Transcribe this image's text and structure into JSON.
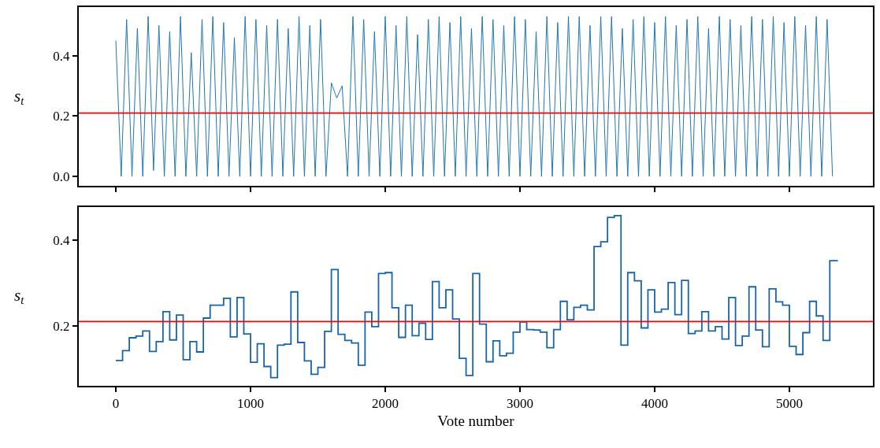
{
  "chart_data": [
    {
      "type": "line",
      "ylabel": "s$_{t}$",
      "xlim": [
        -275,
        5620
      ],
      "ylim": [
        -0.031,
        0.561
      ],
      "xticks": [
        0,
        1000,
        2000,
        3000,
        4000,
        5000
      ],
      "yticks": [
        {
          "value": 0,
          "label": "0.0"
        },
        {
          "value": 0.2,
          "label": "0.2"
        },
        {
          "value": 0.4,
          "label": "0.4"
        }
      ],
      "tick_labels": "y",
      "ref_lines": [
        {
          "axis": "y",
          "value": 0.21,
          "color": "#ff0000"
        }
      ],
      "series": [
        {
          "color": "#1f77b4",
          "x": [
            0,
            40,
            80,
            120,
            160,
            200,
            240,
            280,
            320,
            360,
            400,
            440,
            480,
            520,
            560,
            600,
            640,
            680,
            720,
            760,
            800,
            840,
            880,
            920,
            960,
            1000,
            1040,
            1080,
            1120,
            1160,
            1200,
            1240,
            1280,
            1320,
            1360,
            1400,
            1440,
            1480,
            1520,
            1560,
            1600,
            1640,
            1680,
            1720,
            1760,
            1800,
            1840,
            1880,
            1920,
            1960,
            2000,
            2040,
            2080,
            2120,
            2160,
            2200,
            2240,
            2280,
            2320,
            2360,
            2400,
            2440,
            2480,
            2520,
            2560,
            2600,
            2640,
            2680,
            2720,
            2760,
            2800,
            2840,
            2880,
            2920,
            2960,
            3000,
            3040,
            3080,
            3120,
            3160,
            3200,
            3240,
            3280,
            3320,
            3360,
            3400,
            3440,
            3480,
            3520,
            3560,
            3600,
            3640,
            3680,
            3720,
            3760,
            3800,
            3840,
            3880,
            3920,
            3960,
            4000,
            4040,
            4080,
            4120,
            4160,
            4200,
            4240,
            4280,
            4320,
            4360,
            4400,
            4440,
            4480,
            4520,
            4560,
            4600,
            4640,
            4680,
            4720,
            4760,
            4800,
            4840,
            4880,
            4920,
            4960,
            5000,
            5040,
            5080,
            5120,
            5160,
            5200,
            5240,
            5280,
            5320
          ],
          "values": [
            0.45,
            0.0,
            0.52,
            0.0,
            0.49,
            0.0,
            0.53,
            0.02,
            0.5,
            0.0,
            0.48,
            0.0,
            0.53,
            0.0,
            0.41,
            0.0,
            0.52,
            0.0,
            0.53,
            0.0,
            0.51,
            0.0,
            0.46,
            0.0,
            0.53,
            0.0,
            0.52,
            0.0,
            0.5,
            0.0,
            0.52,
            0.0,
            0.49,
            0.0,
            0.53,
            0.0,
            0.5,
            0.0,
            0.52,
            0.0,
            0.31,
            0.26,
            0.3,
            0.0,
            0.53,
            0.0,
            0.52,
            0.0,
            0.48,
            0.0,
            0.53,
            0.0,
            0.5,
            0.0,
            0.53,
            0.0,
            0.47,
            0.0,
            0.52,
            0.0,
            0.53,
            0.0,
            0.51,
            0.0,
            0.53,
            0.0,
            0.49,
            0.0,
            0.53,
            0.0,
            0.52,
            0.0,
            0.5,
            0.0,
            0.53,
            0.0,
            0.52,
            0.0,
            0.48,
            0.0,
            0.53,
            0.0,
            0.51,
            0.0,
            0.53,
            0.0,
            0.53,
            0.0,
            0.5,
            0.0,
            0.53,
            0.0,
            0.53,
            0.0,
            0.49,
            0.0,
            0.52,
            0.0,
            0.53,
            0.0,
            0.51,
            0.0,
            0.53,
            0.0,
            0.5,
            0.0,
            0.52,
            0.0,
            0.53,
            0.0,
            0.49,
            0.0,
            0.53,
            0.0,
            0.52,
            0.0,
            0.5,
            0.0,
            0.53,
            0.0,
            0.52,
            0.0,
            0.53,
            0.0,
            0.51,
            0.0,
            0.53,
            0.0,
            0.5,
            0.0,
            0.53,
            0.0,
            0.52,
            0.0
          ]
        }
      ]
    },
    {
      "type": "step",
      "ylabel": "s$_{t}$",
      "xlabel": "Vote number",
      "xlim": [
        -275,
        5620
      ],
      "ylim": [
        0.06,
        0.477
      ],
      "xticks": [
        0,
        1000,
        2000,
        3000,
        4000,
        5000
      ],
      "yticks": [
        0.2,
        0.4
      ],
      "ref_lines": [
        {
          "axis": "y",
          "value": 0.21,
          "color": "#ff0000"
        }
      ],
      "series": [
        {
          "color": "#1764ab",
          "x": [
            0,
            50,
            100,
            150,
            200,
            250,
            300,
            350,
            400,
            450,
            500,
            550,
            600,
            650,
            700,
            750,
            800,
            850,
            900,
            950,
            1000,
            1050,
            1100,
            1150,
            1200,
            1250,
            1300,
            1350,
            1400,
            1450,
            1500,
            1550,
            1600,
            1650,
            1700,
            1750,
            1800,
            1850,
            1900,
            1950,
            2000,
            2050,
            2100,
            2150,
            2200,
            2250,
            2300,
            2350,
            2400,
            2450,
            2500,
            2550,
            2600,
            2650,
            2700,
            2750,
            2800,
            2850,
            2900,
            2950,
            3000,
            3050,
            3100,
            3150,
            3200,
            3250,
            3300,
            3350,
            3400,
            3450,
            3500,
            3550,
            3600,
            3650,
            3700,
            3750,
            3800,
            3850,
            3900,
            3950,
            4000,
            4050,
            4100,
            4150,
            4200,
            4250,
            4300,
            4350,
            4400,
            4450,
            4500,
            4550,
            4600,
            4650,
            4700,
            4750,
            4800,
            4850,
            4900,
            4950,
            5000,
            5050,
            5100,
            5150,
            5200,
            5250,
            5300,
            5360
          ],
          "values": [
            0.119,
            0.142,
            0.172,
            0.176,
            0.188,
            0.14,
            0.163,
            0.233,
            0.167,
            0.225,
            0.121,
            0.163,
            0.139,
            0.218,
            0.248,
            0.248,
            0.264,
            0.174,
            0.266,
            0.181,
            0.115,
            0.158,
            0.105,
            0.079,
            0.155,
            0.157,
            0.279,
            0.161,
            0.118,
            0.087,
            0.103,
            0.187,
            0.331,
            0.18,
            0.166,
            0.16,
            0.108,
            0.232,
            0.198,
            0.322,
            0.324,
            0.242,
            0.173,
            0.248,
            0.177,
            0.206,
            0.168,
            0.303,
            0.242,
            0.284,
            0.216,
            0.124,
            0.084,
            0.322,
            0.204,
            0.116,
            0.165,
            0.13,
            0.136,
            0.185,
            0.209,
            0.191,
            0.19,
            0.185,
            0.149,
            0.191,
            0.257,
            0.214,
            0.243,
            0.248,
            0.237,
            0.385,
            0.396,
            0.453,
            0.457,
            0.155,
            0.324,
            0.305,
            0.195,
            0.284,
            0.232,
            0.239,
            0.301,
            0.226,
            0.306,
            0.182,
            0.188,
            0.233,
            0.188,
            0.198,
            0.169,
            0.266,
            0.154,
            0.176,
            0.291,
            0.19,
            0.151,
            0.286,
            0.256,
            0.248,
            0.152,
            0.133,
            0.184,
            0.257,
            0.223,
            0.166,
            0.352,
            0.352
          ]
        }
      ]
    }
  ]
}
